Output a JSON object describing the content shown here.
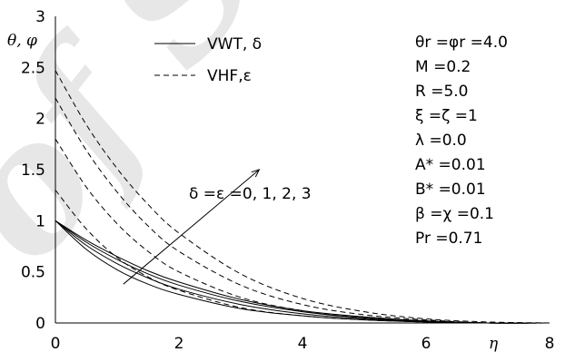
{
  "watermark": "of SID",
  "chart_data": {
    "type": "line",
    "ylabel": "θ, φ",
    "xlabel": "η",
    "xlim": [
      0,
      8
    ],
    "ylim": [
      0,
      3
    ],
    "x_ticks": [
      "0",
      "2",
      "4",
      "6",
      "8"
    ],
    "y_ticks": [
      "0",
      "0.5",
      "1",
      "1.5",
      "2",
      "2.5",
      "3"
    ],
    "grid": false,
    "legend": [
      {
        "label": "VWT, δ",
        "style": "solid"
      },
      {
        "label": "VHF,ε",
        "style": "dashed"
      }
    ],
    "parameters": [
      "θr =φr =4.0",
      "M =0.2",
      "R =5.0",
      "ξ =ζ =1",
      "λ =0.0",
      "A* =0.01",
      "B* =0.01",
      "β =χ =0.1",
      "Pr =0.71"
    ],
    "annotation": "δ =ε =0, 1, 2, 3",
    "series": [
      {
        "style": "solid",
        "points": [
          [
            0,
            1.0
          ],
          [
            0.5,
            0.72
          ],
          [
            1,
            0.52
          ],
          [
            1.5,
            0.38
          ],
          [
            2,
            0.28
          ],
          [
            3,
            0.14
          ],
          [
            4,
            0.07
          ],
          [
            5,
            0.03
          ],
          [
            6,
            0.01
          ],
          [
            7,
            0.0
          ],
          [
            8,
            0.0
          ]
        ]
      },
      {
        "style": "solid",
        "points": [
          [
            0,
            1.0
          ],
          [
            0.5,
            0.76
          ],
          [
            1,
            0.58
          ],
          [
            1.5,
            0.44
          ],
          [
            2,
            0.33
          ],
          [
            3,
            0.18
          ],
          [
            4,
            0.09
          ],
          [
            5,
            0.04
          ],
          [
            6,
            0.015
          ],
          [
            7,
            0.0
          ],
          [
            8,
            0.0
          ]
        ]
      },
      {
        "style": "solid",
        "points": [
          [
            0,
            1.0
          ],
          [
            0.5,
            0.79
          ],
          [
            1,
            0.62
          ],
          [
            1.5,
            0.48
          ],
          [
            2,
            0.37
          ],
          [
            3,
            0.21
          ],
          [
            4,
            0.11
          ],
          [
            5,
            0.05
          ],
          [
            6,
            0.02
          ],
          [
            7,
            0.0
          ],
          [
            8,
            0.0
          ]
        ]
      },
      {
        "style": "solid",
        "points": [
          [
            0,
            1.0
          ],
          [
            0.5,
            0.81
          ],
          [
            1,
            0.65
          ],
          [
            1.5,
            0.51
          ],
          [
            2,
            0.4
          ],
          [
            3,
            0.23
          ],
          [
            4,
            0.12
          ],
          [
            5,
            0.06
          ],
          [
            6,
            0.02
          ],
          [
            7,
            0.0
          ],
          [
            8,
            0.0
          ]
        ]
      },
      {
        "style": "dashed",
        "points": [
          [
            0,
            1.3
          ],
          [
            0.5,
            0.92
          ],
          [
            1,
            0.64
          ],
          [
            1.5,
            0.45
          ],
          [
            2,
            0.32
          ],
          [
            3,
            0.15
          ],
          [
            4,
            0.07
          ],
          [
            5,
            0.03
          ],
          [
            6,
            0.01
          ],
          [
            7,
            0.0
          ],
          [
            8,
            0.0
          ]
        ]
      },
      {
        "style": "dashed",
        "points": [
          [
            0,
            1.8
          ],
          [
            0.5,
            1.33
          ],
          [
            1,
            0.97
          ],
          [
            1.5,
            0.7
          ],
          [
            2,
            0.5
          ],
          [
            3,
            0.25
          ],
          [
            4,
            0.12
          ],
          [
            5,
            0.05
          ],
          [
            6,
            0.02
          ],
          [
            7,
            0.0
          ],
          [
            8,
            0.0
          ]
        ]
      },
      {
        "style": "dashed",
        "points": [
          [
            0,
            2.2
          ],
          [
            0.5,
            1.69
          ],
          [
            1,
            1.28
          ],
          [
            1.5,
            0.95
          ],
          [
            2,
            0.7
          ],
          [
            3,
            0.37
          ],
          [
            4,
            0.18
          ],
          [
            5,
            0.08
          ],
          [
            6,
            0.03
          ],
          [
            7,
            0.0
          ],
          [
            8,
            0.0
          ]
        ]
      },
      {
        "style": "dashed",
        "points": [
          [
            0,
            2.47
          ],
          [
            0.5,
            1.94
          ],
          [
            1,
            1.51
          ],
          [
            1.5,
            1.16
          ],
          [
            2,
            0.88
          ],
          [
            3,
            0.48
          ],
          [
            4,
            0.24
          ],
          [
            5,
            0.11
          ],
          [
            6,
            0.04
          ],
          [
            7,
            0.01
          ],
          [
            8,
            0.0
          ]
        ]
      }
    ],
    "arrow": {
      "from": [
        1.1,
        0.38
      ],
      "to": [
        3.3,
        1.5
      ]
    }
  }
}
